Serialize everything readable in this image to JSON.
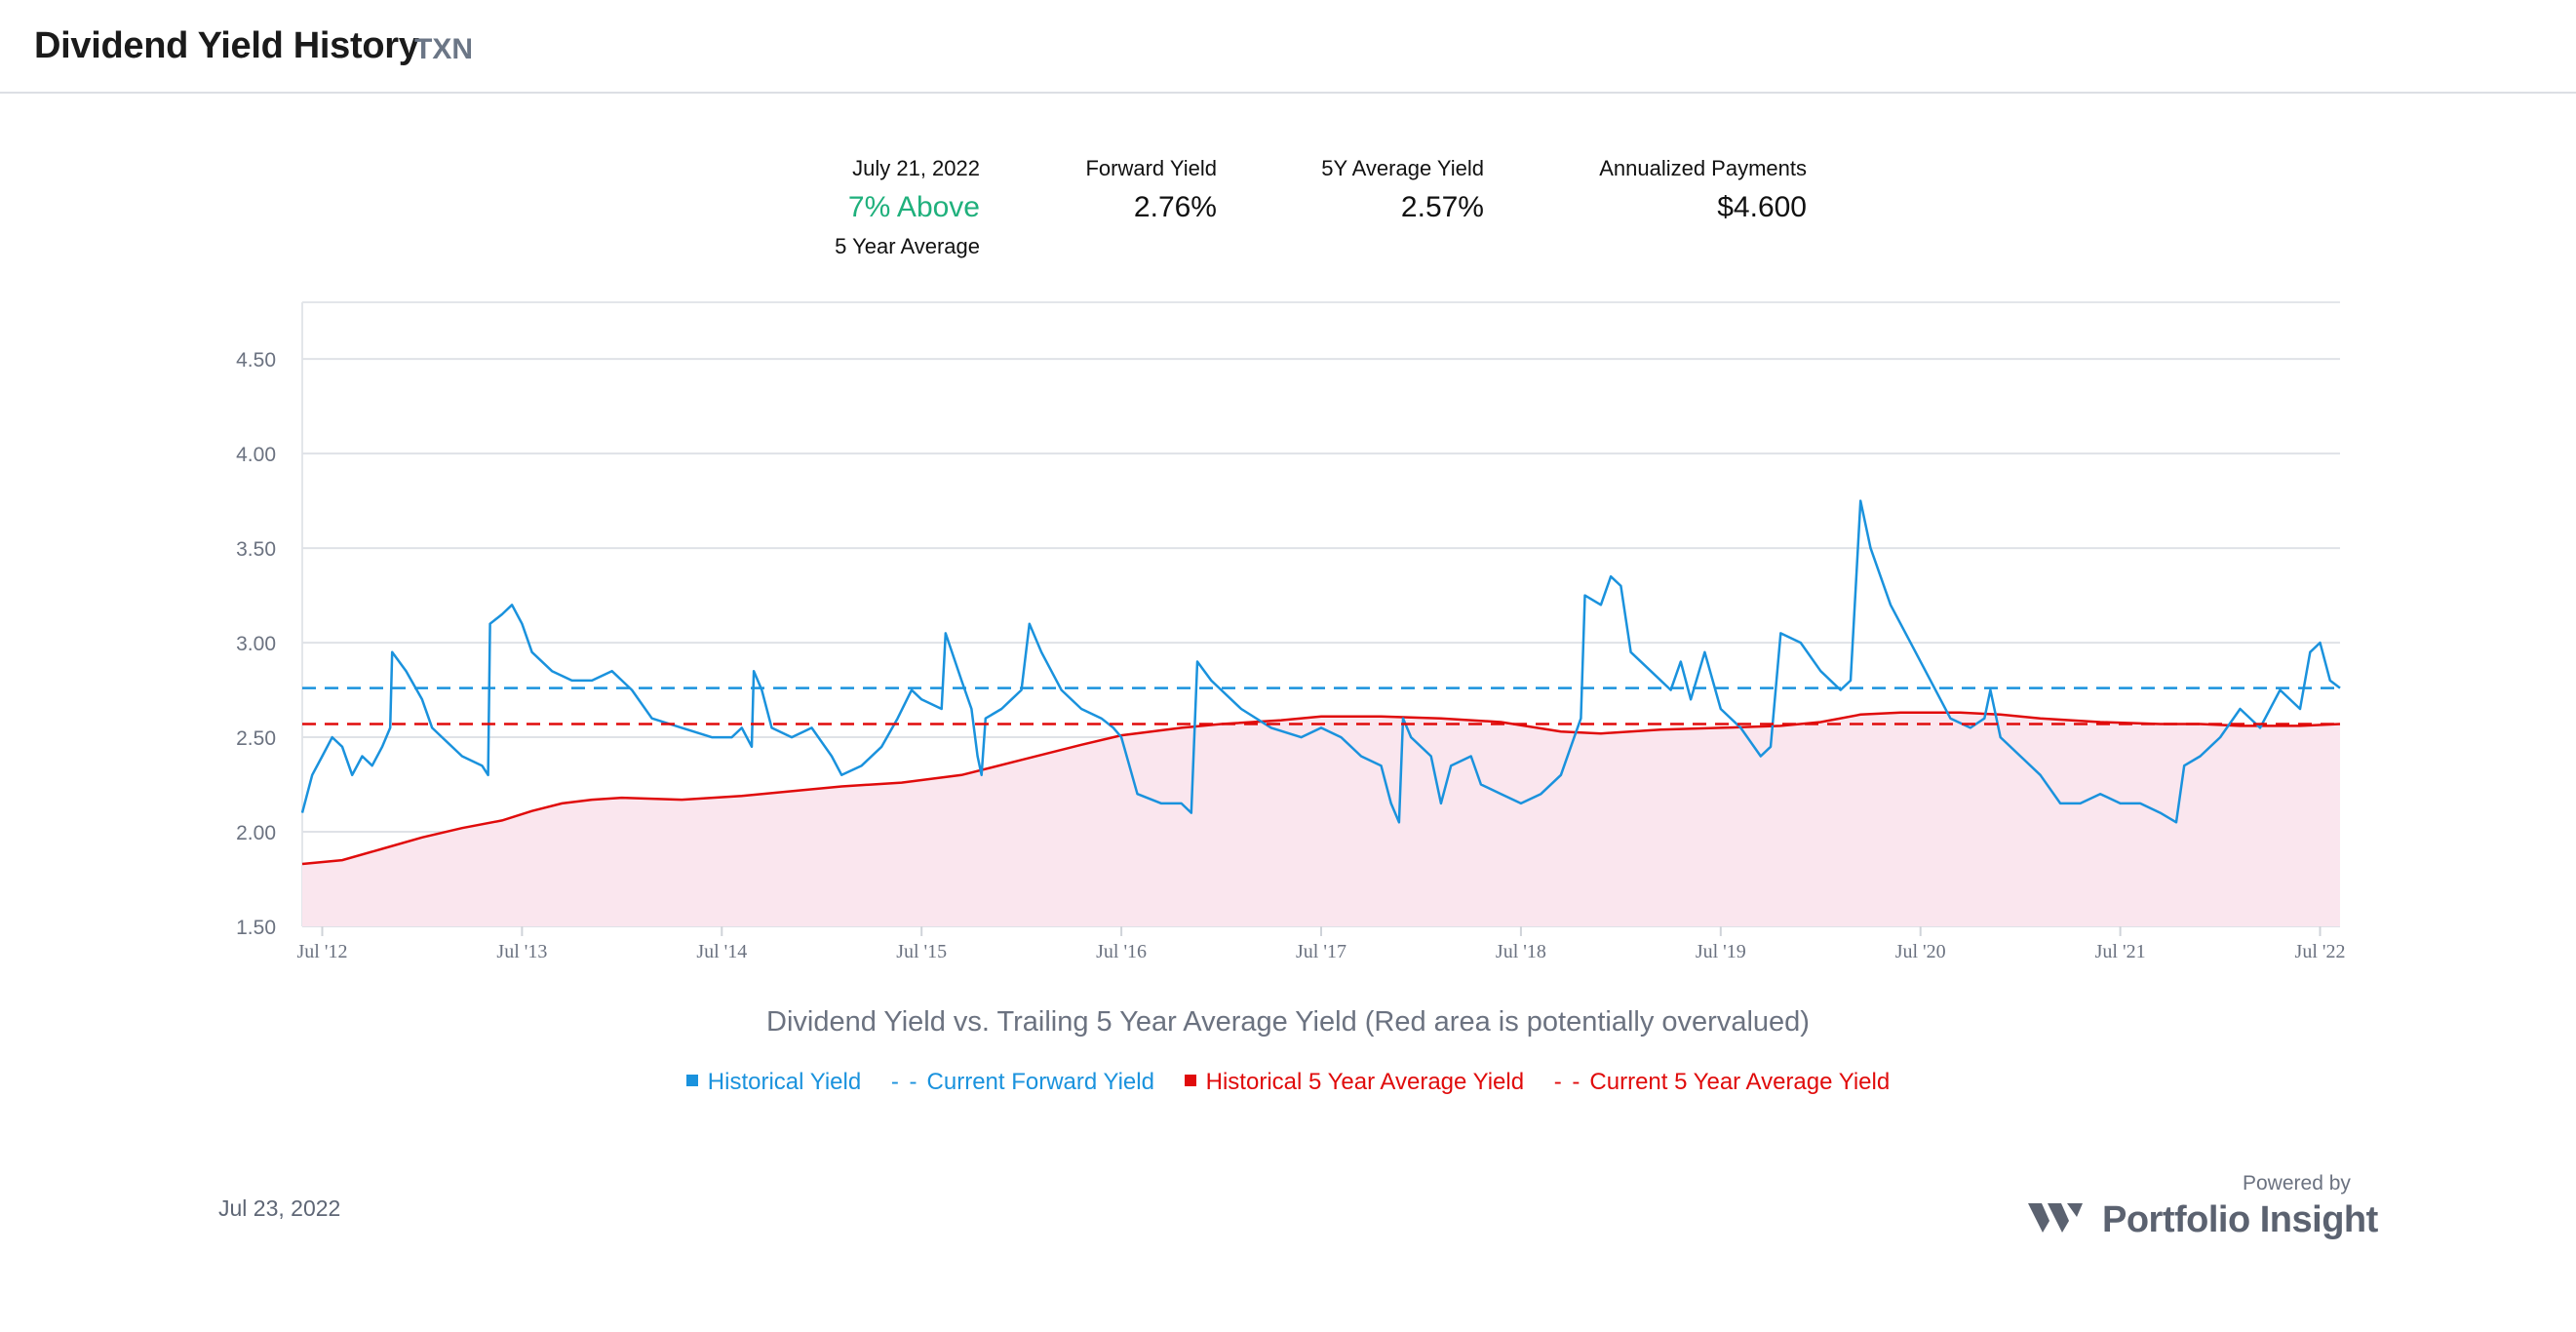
{
  "header": {
    "title": "Dividend Yield History",
    "ticker": "TXN"
  },
  "stats": {
    "date": "July 21, 2022",
    "relative_value": "7% Above",
    "relative_caption": "5 Year Average",
    "forward_yield_label": "Forward Yield",
    "forward_yield": "2.76%",
    "avg_yield_label": "5Y Average Yield",
    "avg_yield": "2.57%",
    "payments_label": "Annualized Payments",
    "payments": "$4.600"
  },
  "caption": "Dividend Yield vs. Trailing 5 Year Average Yield (Red area is potentially overvalued)",
  "legend": {
    "historical_yield": "Historical Yield",
    "current_forward_yield": "Current Forward Yield",
    "historical_avg": "Historical 5 Year Average Yield",
    "current_avg": "Current 5 Year Average Yield"
  },
  "footer": {
    "date": "Jul 23, 2022",
    "powered_by": "Powered by",
    "brand": "Portfolio Insight"
  },
  "colors": {
    "yield": "#1a92dd",
    "average": "#e00b0b",
    "area": "#fae6ee",
    "accent_green": "#1fb07c"
  },
  "chart_data": {
    "type": "line",
    "ylim": [
      1.5,
      4.8
    ],
    "yticks": [
      "1.50",
      "2.00",
      "2.50",
      "3.00",
      "3.50",
      "4.00",
      "4.50"
    ],
    "xlim": [
      2012.4,
      2022.6
    ],
    "xticks": [
      {
        "x": 2012.5,
        "label": "Jul '12"
      },
      {
        "x": 2013.5,
        "label": "Jul '13"
      },
      {
        "x": 2014.5,
        "label": "Jul '14"
      },
      {
        "x": 2015.5,
        "label": "Jul '15"
      },
      {
        "x": 2016.5,
        "label": "Jul '16"
      },
      {
        "x": 2017.5,
        "label": "Jul '17"
      },
      {
        "x": 2018.5,
        "label": "Jul '18"
      },
      {
        "x": 2019.5,
        "label": "Jul '19"
      },
      {
        "x": 2020.5,
        "label": "Jul '20"
      },
      {
        "x": 2021.5,
        "label": "Jul '21"
      },
      {
        "x": 2022.5,
        "label": "Jul '22"
      }
    ],
    "current_forward_yield": 2.76,
    "current_5y_average": 2.57,
    "series": [
      {
        "name": "Historical Yield",
        "points": [
          [
            2012.4,
            2.1
          ],
          [
            2012.45,
            2.3
          ],
          [
            2012.5,
            2.4
          ],
          [
            2012.55,
            2.5
          ],
          [
            2012.6,
            2.45
          ],
          [
            2012.65,
            2.3
          ],
          [
            2012.7,
            2.4
          ],
          [
            2012.75,
            2.35
          ],
          [
            2012.8,
            2.45
          ],
          [
            2012.84,
            2.55
          ],
          [
            2012.85,
            2.95
          ],
          [
            2012.92,
            2.85
          ],
          [
            2013.0,
            2.7
          ],
          [
            2013.05,
            2.55
          ],
          [
            2013.1,
            2.5
          ],
          [
            2013.2,
            2.4
          ],
          [
            2013.3,
            2.35
          ],
          [
            2013.33,
            2.3
          ],
          [
            2013.34,
            3.1
          ],
          [
            2013.4,
            3.15
          ],
          [
            2013.45,
            3.2
          ],
          [
            2013.5,
            3.1
          ],
          [
            2013.55,
            2.95
          ],
          [
            2013.65,
            2.85
          ],
          [
            2013.75,
            2.8
          ],
          [
            2013.85,
            2.8
          ],
          [
            2013.95,
            2.85
          ],
          [
            2014.05,
            2.75
          ],
          [
            2014.15,
            2.6
          ],
          [
            2014.3,
            2.55
          ],
          [
            2014.45,
            2.5
          ],
          [
            2014.55,
            2.5
          ],
          [
            2014.6,
            2.55
          ],
          [
            2014.65,
            2.45
          ],
          [
            2014.66,
            2.85
          ],
          [
            2014.7,
            2.75
          ],
          [
            2014.75,
            2.55
          ],
          [
            2014.85,
            2.5
          ],
          [
            2014.95,
            2.55
          ],
          [
            2015.05,
            2.4
          ],
          [
            2015.1,
            2.3
          ],
          [
            2015.2,
            2.35
          ],
          [
            2015.3,
            2.45
          ],
          [
            2015.38,
            2.6
          ],
          [
            2015.45,
            2.75
          ],
          [
            2015.5,
            2.7
          ],
          [
            2015.6,
            2.65
          ],
          [
            2015.62,
            3.05
          ],
          [
            2015.7,
            2.8
          ],
          [
            2015.75,
            2.65
          ],
          [
            2015.78,
            2.4
          ],
          [
            2015.8,
            2.3
          ],
          [
            2015.82,
            2.6
          ],
          [
            2015.9,
            2.65
          ],
          [
            2015.95,
            2.7
          ],
          [
            2016.0,
            2.75
          ],
          [
            2016.04,
            3.1
          ],
          [
            2016.1,
            2.95
          ],
          [
            2016.2,
            2.75
          ],
          [
            2016.3,
            2.65
          ],
          [
            2016.4,
            2.6
          ],
          [
            2016.46,
            2.55
          ],
          [
            2016.5,
            2.5
          ],
          [
            2016.58,
            2.2
          ],
          [
            2016.7,
            2.15
          ],
          [
            2016.8,
            2.15
          ],
          [
            2016.85,
            2.1
          ],
          [
            2016.88,
            2.9
          ],
          [
            2016.95,
            2.8
          ],
          [
            2017.1,
            2.65
          ],
          [
            2017.25,
            2.55
          ],
          [
            2017.4,
            2.5
          ],
          [
            2017.5,
            2.55
          ],
          [
            2017.6,
            2.5
          ],
          [
            2017.7,
            2.4
          ],
          [
            2017.8,
            2.35
          ],
          [
            2017.85,
            2.15
          ],
          [
            2017.89,
            2.05
          ],
          [
            2017.91,
            2.6
          ],
          [
            2017.95,
            2.5
          ],
          [
            2018.05,
            2.4
          ],
          [
            2018.1,
            2.15
          ],
          [
            2018.15,
            2.35
          ],
          [
            2018.25,
            2.4
          ],
          [
            2018.3,
            2.25
          ],
          [
            2018.4,
            2.2
          ],
          [
            2018.5,
            2.15
          ],
          [
            2018.6,
            2.2
          ],
          [
            2018.7,
            2.3
          ],
          [
            2018.75,
            2.45
          ],
          [
            2018.8,
            2.6
          ],
          [
            2018.82,
            3.25
          ],
          [
            2018.9,
            3.2
          ],
          [
            2018.95,
            3.35
          ],
          [
            2019.0,
            3.3
          ],
          [
            2019.05,
            2.95
          ],
          [
            2019.15,
            2.85
          ],
          [
            2019.25,
            2.75
          ],
          [
            2019.3,
            2.9
          ],
          [
            2019.35,
            2.7
          ],
          [
            2019.42,
            2.95
          ],
          [
            2019.5,
            2.65
          ],
          [
            2019.6,
            2.55
          ],
          [
            2019.7,
            2.4
          ],
          [
            2019.75,
            2.45
          ],
          [
            2019.8,
            3.05
          ],
          [
            2019.9,
            3.0
          ],
          [
            2020.0,
            2.85
          ],
          [
            2020.1,
            2.75
          ],
          [
            2020.15,
            2.8
          ],
          [
            2020.2,
            3.75
          ],
          [
            2020.25,
            3.5
          ],
          [
            2020.35,
            3.2
          ],
          [
            2020.45,
            3.0
          ],
          [
            2020.55,
            2.8
          ],
          [
            2020.65,
            2.6
          ],
          [
            2020.75,
            2.55
          ],
          [
            2020.82,
            2.6
          ],
          [
            2020.85,
            2.75
          ],
          [
            2020.9,
            2.5
          ],
          [
            2021.0,
            2.4
          ],
          [
            2021.1,
            2.3
          ],
          [
            2021.2,
            2.15
          ],
          [
            2021.3,
            2.15
          ],
          [
            2021.4,
            2.2
          ],
          [
            2021.5,
            2.15
          ],
          [
            2021.6,
            2.15
          ],
          [
            2021.7,
            2.1
          ],
          [
            2021.78,
            2.05
          ],
          [
            2021.82,
            2.35
          ],
          [
            2021.9,
            2.4
          ],
          [
            2022.0,
            2.5
          ],
          [
            2022.1,
            2.65
          ],
          [
            2022.2,
            2.55
          ],
          [
            2022.3,
            2.75
          ],
          [
            2022.4,
            2.65
          ],
          [
            2022.45,
            2.95
          ],
          [
            2022.5,
            3.0
          ],
          [
            2022.55,
            2.8
          ],
          [
            2022.6,
            2.76
          ]
        ]
      },
      {
        "name": "Historical 5 Year Average Yield",
        "points": [
          [
            2012.4,
            1.83
          ],
          [
            2012.6,
            1.85
          ],
          [
            2012.8,
            1.91
          ],
          [
            2013.0,
            1.97
          ],
          [
            2013.2,
            2.02
          ],
          [
            2013.4,
            2.06
          ],
          [
            2013.55,
            2.11
          ],
          [
            2013.7,
            2.15
          ],
          [
            2013.85,
            2.17
          ],
          [
            2014.0,
            2.18
          ],
          [
            2014.3,
            2.17
          ],
          [
            2014.6,
            2.19
          ],
          [
            2014.9,
            2.22
          ],
          [
            2015.1,
            2.24
          ],
          [
            2015.4,
            2.26
          ],
          [
            2015.7,
            2.3
          ],
          [
            2016.0,
            2.38
          ],
          [
            2016.3,
            2.46
          ],
          [
            2016.5,
            2.51
          ],
          [
            2016.8,
            2.55
          ],
          [
            2017.0,
            2.57
          ],
          [
            2017.3,
            2.59
          ],
          [
            2017.5,
            2.61
          ],
          [
            2017.8,
            2.61
          ],
          [
            2018.1,
            2.6
          ],
          [
            2018.4,
            2.58
          ],
          [
            2018.7,
            2.53
          ],
          [
            2018.9,
            2.52
          ],
          [
            2019.2,
            2.54
          ],
          [
            2019.5,
            2.55
          ],
          [
            2019.8,
            2.56
          ],
          [
            2020.0,
            2.58
          ],
          [
            2020.2,
            2.62
          ],
          [
            2020.4,
            2.63
          ],
          [
            2020.7,
            2.63
          ],
          [
            2020.9,
            2.62
          ],
          [
            2021.1,
            2.6
          ],
          [
            2021.4,
            2.58
          ],
          [
            2021.7,
            2.57
          ],
          [
            2021.9,
            2.57
          ],
          [
            2022.1,
            2.56
          ],
          [
            2022.4,
            2.56
          ],
          [
            2022.6,
            2.57
          ]
        ]
      }
    ]
  }
}
